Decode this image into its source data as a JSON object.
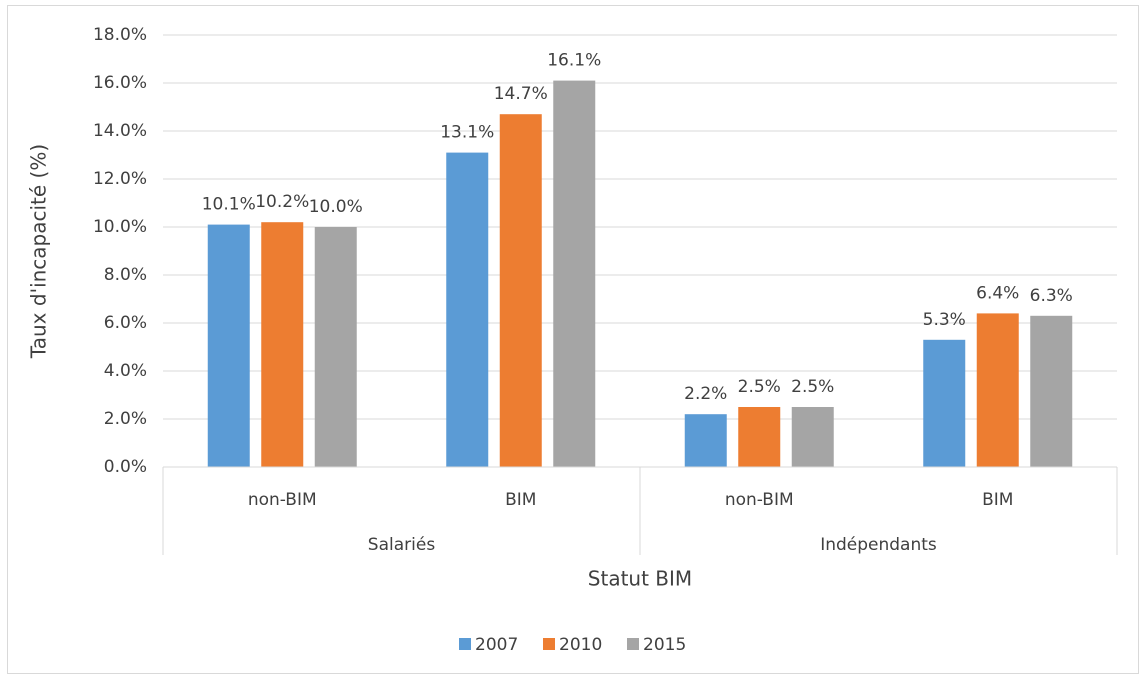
{
  "chart_data": {
    "type": "bar",
    "y_label": "Taux d'incapacité  (%)",
    "x_label": "Statut BIM",
    "category_groups": [
      {
        "name": "Salariés",
        "categories": [
          "non-BIM",
          "BIM"
        ]
      },
      {
        "name": "Indépendants",
        "categories": [
          "non-BIM",
          "BIM"
        ]
      }
    ],
    "series": [
      {
        "name": "2007",
        "color": "#5b9bd5",
        "values": [
          10.1,
          13.1,
          2.2,
          5.3
        ],
        "value_labels": [
          "10.1%",
          "13.1%",
          "2.2%",
          "5.3%"
        ]
      },
      {
        "name": "2010",
        "color": "#ed7d31",
        "values": [
          10.2,
          14.7,
          2.5,
          6.4
        ],
        "value_labels": [
          "10.2%",
          "14.7%",
          "2.5%",
          "6.4%"
        ]
      },
      {
        "name": "2015",
        "color": "#a5a5a5",
        "values": [
          10.0,
          16.1,
          2.5,
          6.3
        ],
        "value_labels": [
          "10.0%",
          "16.1%",
          "2.5%",
          "6.3%"
        ]
      }
    ],
    "ylim": [
      0,
      18
    ],
    "yticks": [
      {
        "value": 0,
        "label": "0.0%"
      },
      {
        "value": 2,
        "label": "2.0%"
      },
      {
        "value": 4,
        "label": "4.0%"
      },
      {
        "value": 6,
        "label": "6.0%"
      },
      {
        "value": 8,
        "label": "8.0%"
      },
      {
        "value": 10,
        "label": "10.0%"
      },
      {
        "value": 12,
        "label": "12.0%"
      },
      {
        "value": 14,
        "label": "14.0%"
      },
      {
        "value": 16,
        "label": "16.0%"
      },
      {
        "value": 18,
        "label": "18.0%"
      }
    ],
    "grid": true,
    "legend": "bottom"
  }
}
